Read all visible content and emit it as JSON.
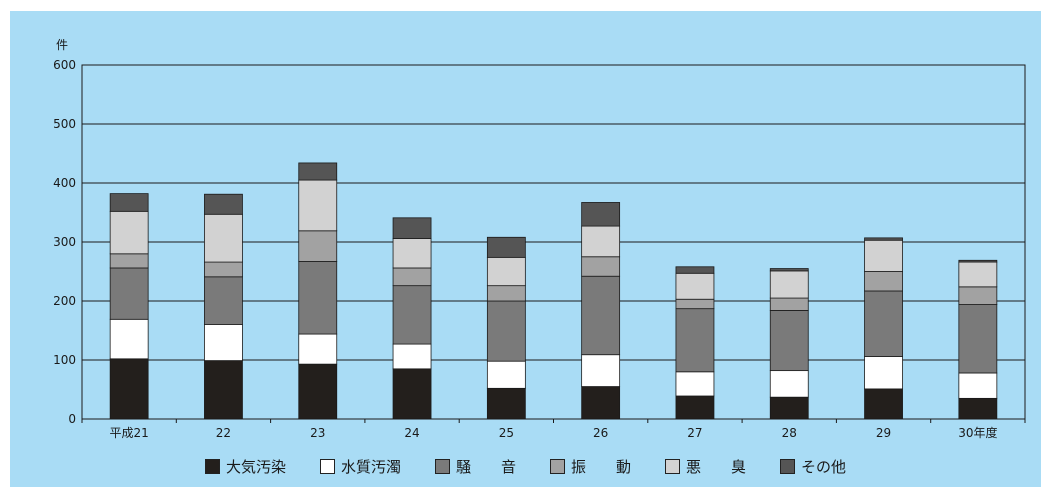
{
  "chart_data": {
    "type": "bar",
    "stacked": true,
    "y_unit": "件",
    "ylim": [
      0,
      600
    ],
    "yticks": [
      "0",
      "100",
      "200",
      "300",
      "400",
      "500",
      "600"
    ],
    "grid": true,
    "legend_position": "bottom",
    "categories": [
      "平成21",
      "22",
      "23",
      "24",
      "25",
      "26",
      "27",
      "28",
      "29",
      "30年度"
    ],
    "series": [
      {
        "name": "大気汚染",
        "color": "#231f1c",
        "values": [
          102,
          99,
          93,
          85,
          52,
          55,
          39,
          37,
          51,
          35
        ]
      },
      {
        "name": "水質汚濁",
        "color": "#ffffff",
        "values": [
          67,
          61,
          51,
          42,
          46,
          54,
          41,
          45,
          55,
          43
        ]
      },
      {
        "name": "騒　　音",
        "color": "#7a7a7a",
        "values": [
          87,
          81,
          123,
          99,
          102,
          133,
          107,
          102,
          111,
          116
        ]
      },
      {
        "name": "振　　動",
        "color": "#a2a2a2",
        "values": [
          24,
          25,
          52,
          30,
          26,
          33,
          16,
          21,
          33,
          30
        ]
      },
      {
        "name": "悪　　臭",
        "color": "#d2d2d2",
        "values": [
          72,
          81,
          86,
          50,
          48,
          52,
          44,
          46,
          53,
          42
        ]
      },
      {
        "name": "その他",
        "color": "#555555",
        "values": [
          30,
          34,
          29,
          35,
          34,
          40,
          11,
          4,
          4,
          3
        ]
      }
    ]
  }
}
